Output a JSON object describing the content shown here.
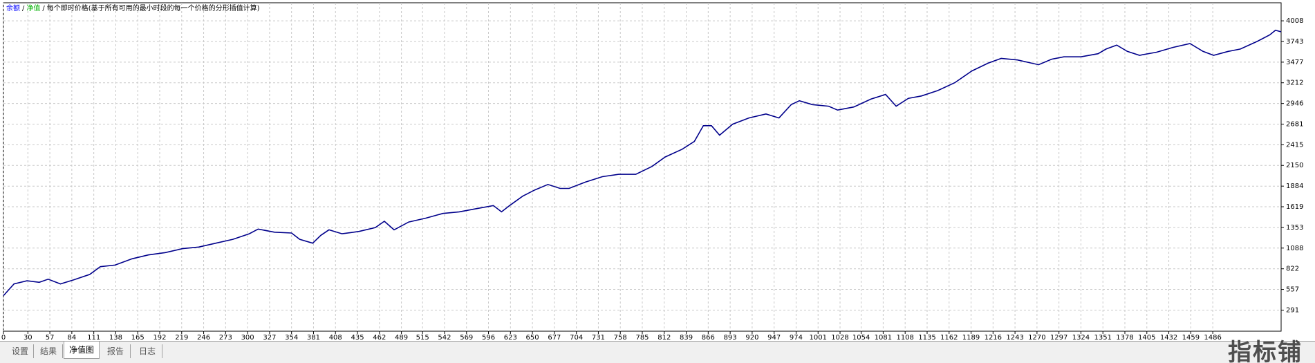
{
  "chart_data": {
    "type": "line",
    "separator": "/",
    "legend_items": [
      {
        "label": "净值",
        "color": "#00b000"
      },
      {
        "label": "每个即时价格(基于所有可用的最小时段的每一个价格的分形插值计算)",
        "color": "#000000"
      }
    ],
    "x": [
      0,
      13,
      29,
      44,
      55,
      70,
      86,
      106,
      119,
      137,
      158,
      178,
      199,
      220,
      240,
      261,
      282,
      302,
      313,
      333,
      354,
      364,
      380,
      390,
      400,
      416,
      437,
      457,
      468,
      480,
      498,
      519,
      540,
      560,
      581,
      602,
      612,
      622,
      638,
      653,
      669,
      684,
      695,
      715,
      736,
      756,
      777,
      797,
      813,
      834,
      849,
      860,
      870,
      880,
      896,
      916,
      937,
      953,
      968,
      978,
      994,
      1014,
      1025,
      1045,
      1066,
      1084,
      1097,
      1112,
      1128,
      1148,
      1169,
      1190,
      1210,
      1226,
      1246,
      1272,
      1288,
      1303,
      1324,
      1345,
      1355,
      1368,
      1381,
      1396,
      1417,
      1437,
      1458,
      1474,
      1487,
      1505,
      1520,
      1541,
      1556,
      1563,
      1570
    ],
    "series": [
      {
        "name": "余额",
        "color": "#0000ff",
        "line_color": "#00008b",
        "values": [
          477,
          628,
          668,
          648,
          688,
          628,
          678,
          749,
          849,
          869,
          950,
          1000,
          1030,
          1081,
          1101,
          1151,
          1201,
          1272,
          1332,
          1292,
          1282,
          1201,
          1151,
          1252,
          1322,
          1272,
          1302,
          1352,
          1433,
          1322,
          1423,
          1473,
          1533,
          1553,
          1594,
          1634,
          1553,
          1634,
          1755,
          1835,
          1905,
          1855,
          1855,
          1935,
          2006,
          2036,
          2036,
          2137,
          2258,
          2358,
          2459,
          2660,
          2660,
          2539,
          2680,
          2760,
          2811,
          2760,
          2931,
          2981,
          2931,
          2911,
          2861,
          2901,
          3002,
          3062,
          2911,
          3012,
          3042,
          3112,
          3213,
          3364,
          3464,
          3525,
          3505,
          3444,
          3515,
          3545,
          3545,
          3585,
          3646,
          3696,
          3615,
          3565,
          3605,
          3666,
          3716,
          3615,
          3565,
          3615,
          3646,
          3746,
          3827,
          3887,
          3867
        ]
      }
    ],
    "xlim": [
      0,
      1570
    ],
    "xticks": [
      0,
      30,
      57,
      84,
      111,
      138,
      165,
      192,
      219,
      246,
      273,
      300,
      327,
      354,
      381,
      408,
      435,
      462,
      489,
      515,
      542,
      569,
      596,
      623,
      650,
      677,
      704,
      731,
      758,
      785,
      812,
      839,
      866,
      893,
      920,
      947,
      974,
      1001,
      1028,
      1054,
      1081,
      1108,
      1135,
      1162,
      1189,
      1216,
      1243,
      1270,
      1297,
      1324,
      1351,
      1378,
      1405,
      1432,
      1459,
      1486
    ],
    "ylim": [
      20,
      4240
    ],
    "yticks": [
      291,
      557,
      822,
      1088,
      1353,
      1619,
      1884,
      2150,
      2415,
      2681,
      2946,
      3212,
      3477,
      3743,
      4008
    ],
    "grid": true
  },
  "tabs": [
    "设置",
    "结果",
    "净值图",
    "报告",
    "日志"
  ],
  "watermark": "指标铺"
}
